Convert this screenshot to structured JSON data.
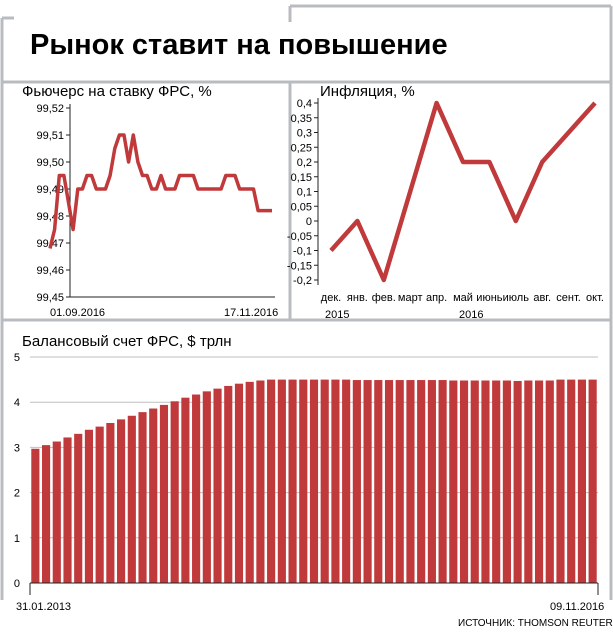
{
  "header": {
    "title": "Рынок ставит на повышение",
    "source": "ИСТОЧНИК: THOMSON REUTERS"
  },
  "colors": {
    "series": "#c0393b",
    "bar": "#c0393b",
    "frame": "#b8bcc1",
    "axis": "#222222"
  },
  "chart_data": [
    {
      "type": "line",
      "title": "Фьючерс на ставку ФРС, %",
      "ylim": [
        99.45,
        99.52
      ],
      "y_ticks": [
        "99,52",
        "99,51",
        "99,50",
        "99,49",
        "99,48",
        "99,47",
        "99,46",
        "99,45"
      ],
      "x_labels": [
        "01.09.2016",
        "17.11.2016"
      ],
      "series": [
        {
          "values": [
            99.468,
            99.475,
            99.495,
            99.495,
            99.485,
            99.475,
            99.49,
            99.49,
            99.495,
            99.495,
            99.49,
            99.49,
            99.49,
            99.495,
            99.505,
            99.51,
            99.51,
            99.5,
            99.51,
            99.5,
            99.495,
            99.495,
            99.49,
            99.49,
            99.495,
            99.49,
            99.49,
            99.49,
            99.495,
            99.495,
            99.495,
            99.495,
            99.49,
            99.49,
            99.49,
            99.49,
            99.49,
            99.49,
            99.495,
            99.495,
            99.495,
            99.49,
            99.49,
            99.49,
            99.49,
            99.482,
            99.482,
            99.482,
            99.482
          ]
        }
      ]
    },
    {
      "type": "line",
      "title": "Инфляция, %",
      "ylim": [
        -0.2,
        0.4
      ],
      "y_ticks": [
        "0,4",
        "0,35",
        "0,3",
        "0,25",
        "0,2",
        "0,15",
        "0,1",
        "0,05",
        "0",
        "-0,05",
        "-0,1",
        "-0,15",
        "-0,2"
      ],
      "categories": [
        "дек.",
        "янв.",
        "фев.",
        "март",
        "апр.",
        "май",
        "июнь",
        "июль",
        "авг.",
        "сент.",
        "окт."
      ],
      "year_labels": [
        "2015",
        "2016"
      ],
      "series": [
        {
          "values": [
            -0.1,
            0.0,
            -0.2,
            0.1,
            0.4,
            0.2,
            0.2,
            0.0,
            0.2,
            0.3,
            0.4
          ]
        }
      ]
    },
    {
      "type": "bar",
      "title": "Балансовый счет ФРС, $ трлн",
      "ylim": [
        0,
        5
      ],
      "y_ticks": [
        "5",
        "4",
        "3",
        "2",
        "1",
        "0"
      ],
      "x_labels": [
        "31.01.2013",
        "09.11.2016"
      ],
      "values": [
        2.97,
        3.05,
        3.13,
        3.22,
        3.3,
        3.39,
        3.46,
        3.54,
        3.62,
        3.7,
        3.78,
        3.86,
        3.94,
        4.02,
        4.1,
        4.17,
        4.24,
        4.3,
        4.36,
        4.41,
        4.45,
        4.48,
        4.5,
        4.5,
        4.5,
        4.5,
        4.5,
        4.5,
        4.5,
        4.5,
        4.49,
        4.49,
        4.49,
        4.49,
        4.49,
        4.49,
        4.49,
        4.49,
        4.49,
        4.48,
        4.48,
        4.48,
        4.48,
        4.48,
        4.48,
        4.47,
        4.48,
        4.48,
        4.48,
        4.5,
        4.5,
        4.5,
        4.5
      ]
    }
  ]
}
